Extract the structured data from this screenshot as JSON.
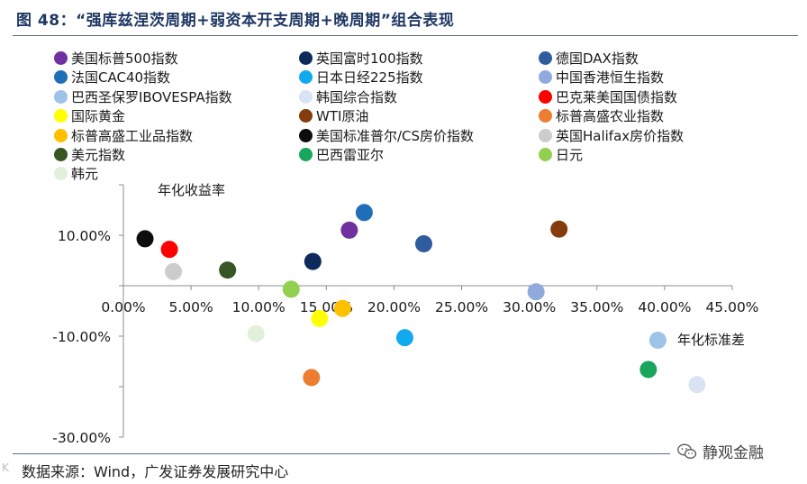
{
  "title": "图 48：“强库兹涅茨周期+弱资本开支周期+晚周期”组合表现",
  "source": "数据来源：Wind，广发证券发展研究中心",
  "watermark": "静观金融",
  "corner_tag": "K",
  "chart_data": {
    "type": "scatter",
    "xlabel": "年化标准差",
    "ylabel": "年化收益率",
    "xlim": [
      0,
      45
    ],
    "ylim": [
      -30,
      20
    ],
    "xticks": [
      "0.00%",
      "5.00%",
      "10.00%",
      "15.00%",
      "20.00%",
      "25.00%",
      "30.00%",
      "35.00%",
      "40.00%",
      "45.00%"
    ],
    "xtick_values": [
      0,
      5,
      10,
      15,
      20,
      25,
      30,
      35,
      40,
      45
    ],
    "yticks": [
      "10.00%",
      "-10.00%",
      "-30.00%"
    ],
    "ytick_values": [
      10,
      -10,
      -30
    ],
    "legend_position": "top",
    "series": [
      {
        "name": "美国标普500指数",
        "color": "#7030a0",
        "x": 16.7,
        "y": 11.0
      },
      {
        "name": "英国富时100指数",
        "color": "#0c2a5a",
        "x": 14.0,
        "y": 4.8
      },
      {
        "name": "德国DAX指数",
        "color": "#2e5c9e",
        "x": 22.2,
        "y": 8.3
      },
      {
        "name": "法国CAC40指数",
        "color": "#1f6fb8",
        "x": 17.8,
        "y": 14.5
      },
      {
        "name": "日本日经225指数",
        "color": "#12aaef",
        "x": 20.8,
        "y": -10.3
      },
      {
        "name": "中国香港恒生指数",
        "color": "#8faadc",
        "x": 30.5,
        "y": -1.2
      },
      {
        "name": "巴西圣保罗IBOVESPA指数",
        "color": "#9dc3e6",
        "x": 39.5,
        "y": -10.8
      },
      {
        "name": "韩国综合指数",
        "color": "#dae3f3",
        "x": 42.4,
        "y": -19.6
      },
      {
        "name": "巴克莱美国国债指数",
        "color": "#ff0000",
        "x": 3.4,
        "y": 7.2
      },
      {
        "name": "国际黄金",
        "color": "#ffff00",
        "x": 14.5,
        "y": -6.5
      },
      {
        "name": "WTI原油",
        "color": "#843c0c",
        "x": 32.2,
        "y": 11.2
      },
      {
        "name": "标普高盛农业指数",
        "color": "#ed7d31",
        "x": 13.9,
        "y": -18.2
      },
      {
        "name": "标普高盛工业品指数",
        "color": "#ffc000",
        "x": 16.2,
        "y": -4.5
      },
      {
        "name": "美国标准普尔/CS房价指数",
        "color": "#0d0d0d",
        "x": 1.6,
        "y": 9.3
      },
      {
        "name": "英国Halifax房价指数",
        "color": "#cccccc",
        "x": 3.7,
        "y": 2.8
      },
      {
        "name": "美元指数",
        "color": "#375623",
        "x": 7.7,
        "y": 3.1
      },
      {
        "name": "巴西雷亚尔",
        "color": "#19a55b",
        "x": 38.8,
        "y": -16.6
      },
      {
        "name": "日元",
        "color": "#92d050",
        "x": 12.4,
        "y": -0.7
      },
      {
        "name": "韩元",
        "color": "#e2efda",
        "x": 9.8,
        "y": -9.5
      }
    ]
  }
}
